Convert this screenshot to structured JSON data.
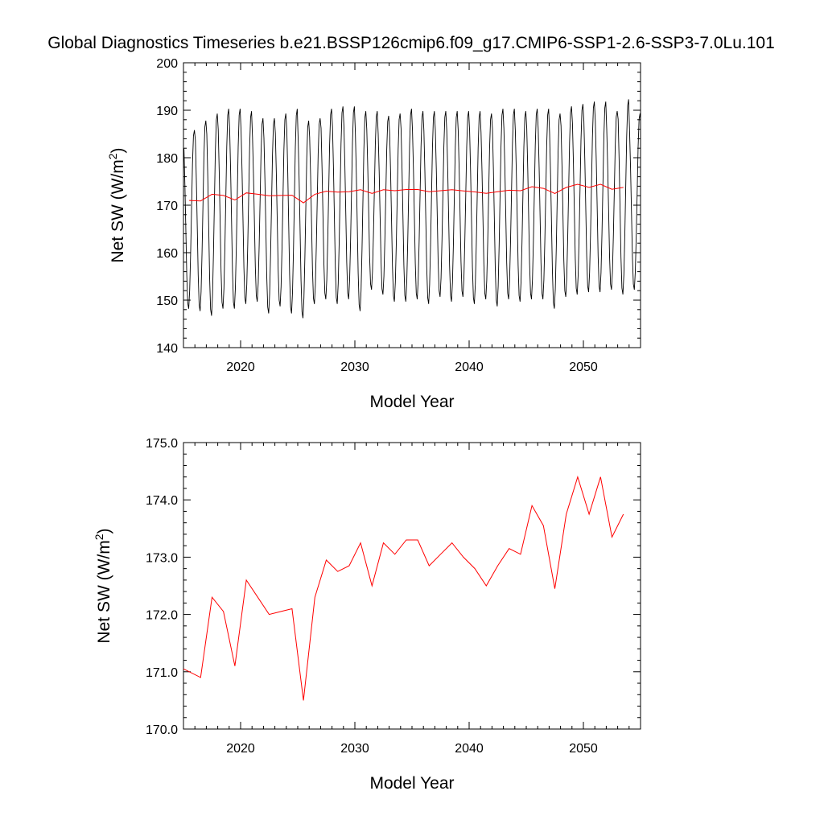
{
  "title": "Global Diagnostics Timeseries b.e21.BSSP126cmip6.f09_g17.CMIP6-SSP1-2.6-SSP3-7.0Lu.101",
  "colors": {
    "monthly": "#000000",
    "annual": "#ff0000"
  },
  "chart_data": [
    {
      "type": "line",
      "xlabel": "Model Year",
      "ylabel": "Net SW (W/m",
      "ylabel_sup": "2",
      "ylabel_close": ")",
      "xlim": [
        2015,
        2055
      ],
      "ylim": [
        140,
        200
      ],
      "xticks": [
        2020,
        2030,
        2040,
        2050
      ],
      "yticks": [
        140,
        150,
        160,
        170,
        180,
        190,
        200
      ],
      "ytick_labels": [
        "140",
        "150",
        "160",
        "170",
        "180",
        "190",
        "200"
      ],
      "monthly_series": {
        "start_year": 2015,
        "peaks": [
          186,
          188,
          189.5,
          190.5,
          190.5,
          190,
          188.5,
          188.5,
          189.5,
          190.5,
          188,
          188.5,
          190.5,
          191,
          191,
          190,
          190,
          189,
          189.5,
          190.5,
          190,
          190,
          190,
          190,
          190,
          190,
          189.5,
          190.5,
          190.5,
          190,
          190.5,
          190.5,
          189.5,
          191,
          191.5,
          192,
          192,
          190,
          192.5,
          189.5,
          190
        ],
        "troughs": [
          148,
          147.5,
          146.5,
          148,
          148,
          149,
          149.5,
          147,
          148.5,
          147,
          146,
          149,
          150,
          149,
          150,
          147.5,
          152,
          151,
          149.5,
          149.5,
          150,
          149,
          150.5,
          149.5,
          150.5,
          149,
          150,
          148.5,
          150,
          149.5,
          150,
          150,
          148,
          150.5,
          151,
          151.5,
          151.5,
          152,
          151,
          152,
          151
        ]
      },
      "annual_series": {
        "x": [
          2015.5,
          2016.5,
          2017.5,
          2018.5,
          2019.5,
          2020.5,
          2021.5,
          2022.5,
          2023.5,
          2024.5,
          2025.5,
          2026.5,
          2027.5,
          2028.5,
          2029.5,
          2030.5,
          2031.5,
          2032.5,
          2033.5,
          2034.5,
          2035.5,
          2036.5,
          2037.5,
          2038.5,
          2039.5,
          2040.5,
          2041.5,
          2042.5,
          2043.5,
          2044.5,
          2045.5,
          2046.5,
          2047.5,
          2048.5,
          2049.5,
          2050.5,
          2051.5,
          2052.5,
          2053.5
        ],
        "y": [
          171.0,
          170.9,
          172.3,
          172.05,
          171.1,
          172.6,
          172.3,
          172.0,
          172.05,
          172.1,
          170.5,
          172.3,
          172.95,
          172.75,
          172.85,
          173.25,
          172.5,
          173.25,
          173.05,
          173.3,
          173.3,
          172.85,
          173.05,
          173.25,
          173.0,
          172.8,
          172.5,
          172.85,
          173.15,
          173.05,
          173.9,
          173.55,
          172.45,
          173.75,
          174.4,
          173.75,
          174.4,
          173.35,
          173.75
        ]
      }
    },
    {
      "type": "line",
      "xlabel": "Model Year",
      "ylabel": "Net SW (W/m",
      "ylabel_sup": "2",
      "ylabel_close": ")",
      "xlim": [
        2015,
        2055
      ],
      "ylim": [
        170,
        175
      ],
      "xticks": [
        2020,
        2030,
        2040,
        2050
      ],
      "yticks": [
        170,
        171,
        172,
        173,
        174,
        175
      ],
      "ytick_labels": [
        "170.0",
        "171.0",
        "172.0",
        "173.0",
        "174.0",
        "175.0"
      ],
      "annual_series": {
        "x": [
          2015.0,
          2016.5,
          2017.5,
          2018.5,
          2019.5,
          2020.5,
          2021.5,
          2022.5,
          2023.5,
          2024.5,
          2025.5,
          2026.5,
          2027.5,
          2028.5,
          2029.5,
          2030.5,
          2031.5,
          2032.5,
          2033.5,
          2034.5,
          2035.5,
          2036.5,
          2037.5,
          2038.5,
          2039.5,
          2040.5,
          2041.5,
          2042.5,
          2043.5,
          2044.5,
          2045.5,
          2046.5,
          2047.5,
          2048.5,
          2049.5,
          2050.5,
          2051.5,
          2052.5,
          2053.5
        ],
        "y": [
          171.05,
          170.9,
          172.3,
          172.05,
          171.1,
          172.6,
          172.3,
          172.0,
          172.05,
          172.1,
          170.5,
          172.3,
          172.95,
          172.75,
          172.85,
          173.25,
          172.5,
          173.25,
          173.05,
          173.3,
          173.3,
          172.85,
          173.05,
          173.25,
          173.0,
          172.8,
          172.5,
          172.85,
          173.15,
          173.05,
          173.9,
          173.55,
          172.45,
          173.75,
          174.4,
          173.75,
          174.4,
          173.35,
          173.75
        ]
      }
    }
  ]
}
